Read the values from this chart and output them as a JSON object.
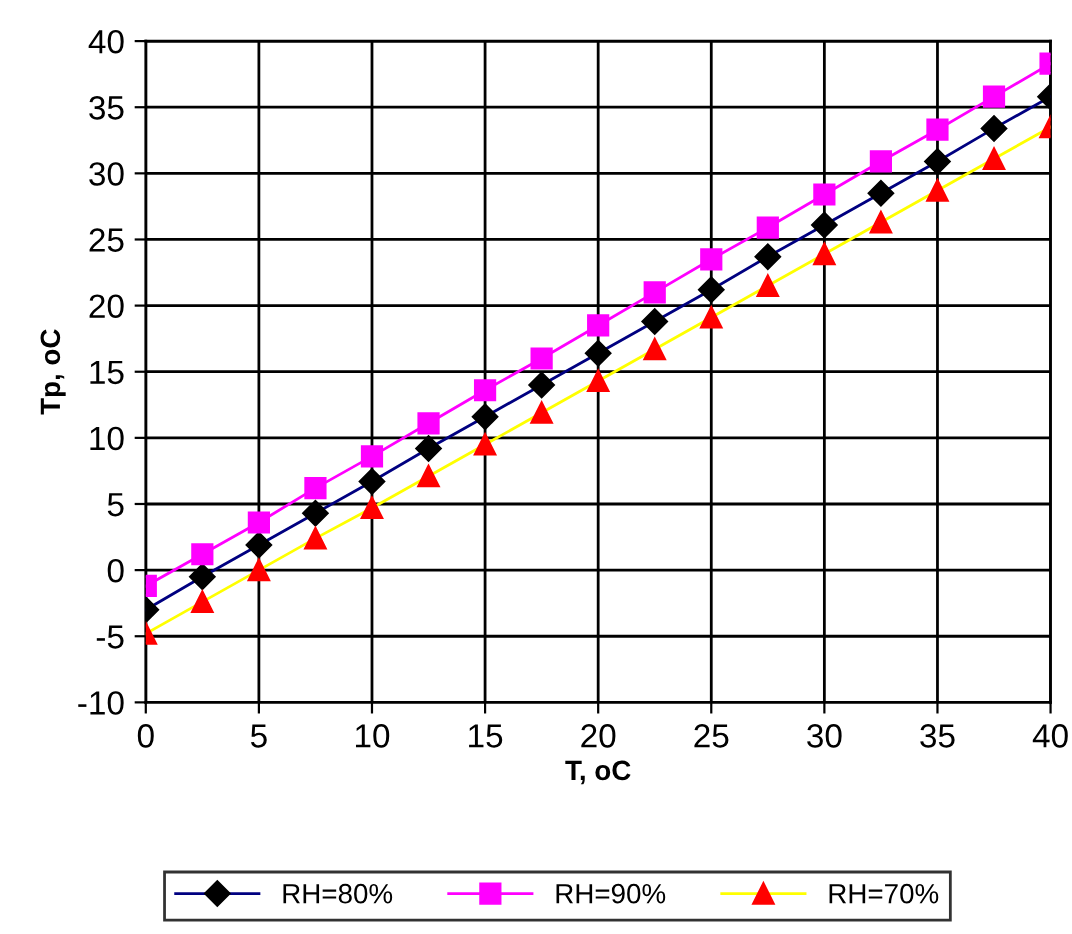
{
  "chart_data": {
    "type": "line",
    "xlabel": "T, oC",
    "ylabel": "Tp, oC",
    "x": [
      0,
      2.5,
      5,
      7.5,
      10,
      12.5,
      15,
      17.5,
      20,
      22.5,
      25,
      27.5,
      30,
      32.5,
      35,
      37.5,
      40
    ],
    "series": [
      {
        "name": "RH=80%",
        "color": "#000080",
        "marker": "diamond",
        "colors": [
          "#000000",
          "#000000",
          "#000000",
          "#000000",
          "#000000",
          "#000000",
          "#000000",
          "#000000",
          "#000000",
          "#000000",
          "#000000",
          "#000000",
          "#000000",
          "#000000",
          "#000000",
          "#000000",
          "#000000"
        ],
        "values": [
          -3,
          -0.5,
          1.9,
          4.3,
          6.7,
          9.2,
          11.6,
          14.0,
          16.4,
          18.8,
          21.2,
          23.7,
          26.1,
          28.5,
          30.9,
          33.4,
          35.8
        ]
      },
      {
        "name": "RH=90%",
        "color": "#ff00ff",
        "marker": "square",
        "values": [
          -1.2,
          1.2,
          3.6,
          6.2,
          8.6,
          11.1,
          13.6,
          16.0,
          18.5,
          21.0,
          23.5,
          25.9,
          28.4,
          30.9,
          33.3,
          35.8,
          38.3
        ]
      },
      {
        "name": "RH=70%",
        "color": "#ffff00",
        "marker": "triangle",
        "colors": [
          "#ff0000",
          "#ff0000",
          "#ff0000",
          "#ff0000",
          "#ff0000",
          "#ff0000",
          "#ff0000",
          "#ff0000",
          "#ff0000",
          "#ff0000",
          "#ff0000",
          "#ff0000",
          "#ff0000",
          "#ff0000",
          "#ff0000",
          "#ff0000",
          "#ff0000"
        ],
        "values": [
          -4.8,
          -2.4,
          0,
          2.4,
          4.7,
          7.1,
          9.5,
          11.9,
          14.3,
          16.7,
          19.1,
          21.5,
          23.9,
          26.3,
          28.7,
          31.1,
          33.5
        ]
      }
    ],
    "xlim": [
      0,
      40
    ],
    "xticks": [
      0,
      5,
      10,
      15,
      20,
      25,
      30,
      35,
      40
    ],
    "ylim": [
      -10,
      40
    ],
    "yticks": [
      -10,
      -5,
      0,
      5,
      10,
      15,
      20,
      25,
      30,
      35,
      40
    ],
    "grid": true,
    "legend": "bottom",
    "line_style": "solid"
  }
}
